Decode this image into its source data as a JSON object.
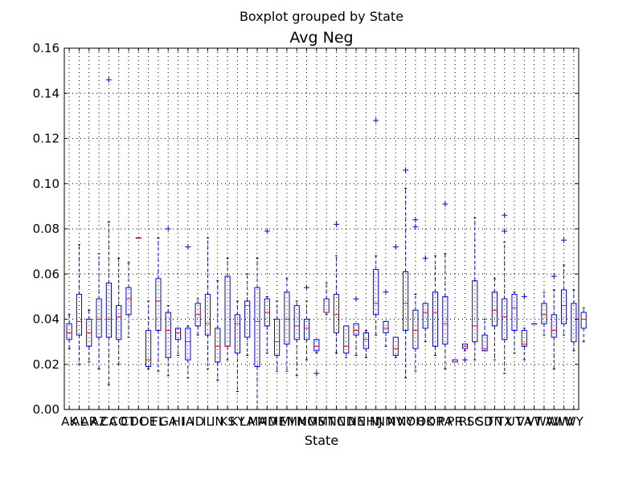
{
  "chart_data": {
    "type": "boxplot",
    "suptitle": "Boxplot grouped by State",
    "title": "Avg Neg",
    "xlabel": "State",
    "ylabel": "",
    "ylim": [
      0,
      0.16
    ],
    "yticks": [
      "0.00",
      "0.02",
      "0.04",
      "0.06",
      "0.08",
      "0.10",
      "0.12",
      "0.14",
      "0.16"
    ],
    "ytick_values": [
      0,
      0.02,
      0.04,
      0.06,
      0.08,
      0.1,
      0.12,
      0.14,
      0.16
    ],
    "grid": true,
    "colors": {
      "box": "#0000ff",
      "median": "#ff0000",
      "flier": "#0000ff",
      "grid": "#000000"
    },
    "categories": [
      "AK",
      "AL",
      "AR",
      "AZ",
      "CA",
      "CO",
      "CT",
      "DC",
      "DE",
      "FL",
      "GA",
      "HI",
      "IA",
      "ID",
      "IL",
      "IN",
      "KS",
      "KY",
      "LA",
      "MA",
      "MD",
      "ME",
      "MI",
      "MN",
      "MO",
      "MS",
      "MT",
      "NC",
      "ND",
      "NE",
      "NH",
      "NJ",
      "NM",
      "NV",
      "NY",
      "OH",
      "OK",
      "OR",
      "PA",
      "PR",
      "RI",
      "SC",
      "SD",
      "TN",
      "TX",
      "UT",
      "VA",
      "VT",
      "WA",
      "WI",
      "WV",
      "WY"
    ],
    "boxes": [
      {
        "min": 0.027,
        "q1": 0.031,
        "median": 0.034,
        "q3": 0.038,
        "max": 0.042,
        "fliers": []
      },
      {
        "min": 0.02,
        "q1": 0.033,
        "median": 0.039,
        "q3": 0.051,
        "max": 0.073,
        "fliers": []
      },
      {
        "min": 0.021,
        "q1": 0.028,
        "median": 0.034,
        "q3": 0.04,
        "max": 0.044,
        "fliers": []
      },
      {
        "min": 0.018,
        "q1": 0.032,
        "median": 0.04,
        "q3": 0.049,
        "max": 0.069,
        "fliers": []
      },
      {
        "min": 0.011,
        "q1": 0.032,
        "median": 0.04,
        "q3": 0.056,
        "max": 0.083,
        "fliers": [
          0.146
        ]
      },
      {
        "min": 0.02,
        "q1": 0.031,
        "median": 0.041,
        "q3": 0.046,
        "max": 0.067,
        "fliers": []
      },
      {
        "min": 0.032,
        "q1": 0.042,
        "median": 0.049,
        "q3": 0.054,
        "max": 0.065,
        "fliers": []
      },
      {
        "min": 0.076,
        "q1": 0.076,
        "median": 0.076,
        "q3": 0.076,
        "max": 0.076,
        "fliers": []
      },
      {
        "min": 0.018,
        "q1": 0.019,
        "median": 0.022,
        "q3": 0.035,
        "max": 0.048,
        "fliers": []
      },
      {
        "min": 0.017,
        "q1": 0.035,
        "median": 0.048,
        "q3": 0.058,
        "max": 0.076,
        "fliers": []
      },
      {
        "min": 0.015,
        "q1": 0.023,
        "median": 0.035,
        "q3": 0.043,
        "max": 0.046,
        "fliers": [
          0.08
        ]
      },
      {
        "min": 0.024,
        "q1": 0.031,
        "median": 0.034,
        "q3": 0.036,
        "max": 0.036,
        "fliers": []
      },
      {
        "min": 0.014,
        "q1": 0.022,
        "median": 0.03,
        "q3": 0.036,
        "max": 0.037,
        "fliers": [
          0.072
        ]
      },
      {
        "min": 0.033,
        "q1": 0.037,
        "median": 0.042,
        "q3": 0.047,
        "max": 0.049,
        "fliers": []
      },
      {
        "min": 0.018,
        "q1": 0.033,
        "median": 0.038,
        "q3": 0.051,
        "max": 0.076,
        "fliers": []
      },
      {
        "min": 0.013,
        "q1": 0.021,
        "median": 0.028,
        "q3": 0.036,
        "max": 0.057,
        "fliers": []
      },
      {
        "min": 0.022,
        "q1": 0.028,
        "median": 0.028,
        "q3": 0.059,
        "max": 0.067,
        "fliers": []
      },
      {
        "min": 0.008,
        "q1": 0.025,
        "median": 0.038,
        "q3": 0.042,
        "max": 0.048,
        "fliers": []
      },
      {
        "min": 0.024,
        "q1": 0.032,
        "median": 0.046,
        "q3": 0.048,
        "max": 0.06,
        "fliers": []
      },
      {
        "min": 0.0,
        "q1": 0.019,
        "median": 0.039,
        "q3": 0.054,
        "max": 0.067,
        "fliers": []
      },
      {
        "min": 0.025,
        "q1": 0.037,
        "median": 0.043,
        "q3": 0.049,
        "max": 0.05,
        "fliers": [
          0.079
        ]
      },
      {
        "min": 0.017,
        "q1": 0.024,
        "median": 0.03,
        "q3": 0.04,
        "max": 0.048,
        "fliers": []
      },
      {
        "min": 0.017,
        "q1": 0.029,
        "median": 0.04,
        "q3": 0.052,
        "max": 0.058,
        "fliers": []
      },
      {
        "min": 0.015,
        "q1": 0.031,
        "median": 0.037,
        "q3": 0.046,
        "max": 0.048,
        "fliers": []
      },
      {
        "min": 0.022,
        "q1": 0.031,
        "median": 0.036,
        "q3": 0.04,
        "max": 0.048,
        "fliers": [
          0.054
        ]
      },
      {
        "min": 0.025,
        "q1": 0.026,
        "median": 0.028,
        "q3": 0.031,
        "max": 0.031,
        "fliers": [
          0.016
        ]
      },
      {
        "min": 0.042,
        "q1": 0.043,
        "median": 0.043,
        "q3": 0.049,
        "max": 0.056,
        "fliers": []
      },
      {
        "min": 0.025,
        "q1": 0.034,
        "median": 0.042,
        "q3": 0.051,
        "max": 0.068,
        "fliers": [
          0.082
        ]
      },
      {
        "min": 0.023,
        "q1": 0.025,
        "median": 0.028,
        "q3": 0.037,
        "max": 0.037,
        "fliers": []
      },
      {
        "min": 0.024,
        "q1": 0.033,
        "median": 0.035,
        "q3": 0.038,
        "max": 0.038,
        "fliers": [
          0.049
        ]
      },
      {
        "min": 0.023,
        "q1": 0.027,
        "median": 0.031,
        "q3": 0.034,
        "max": 0.035,
        "fliers": []
      },
      {
        "min": 0.033,
        "q1": 0.042,
        "median": 0.047,
        "q3": 0.062,
        "max": 0.068,
        "fliers": [
          0.128
        ]
      },
      {
        "min": 0.028,
        "q1": 0.034,
        "median": 0.036,
        "q3": 0.039,
        "max": 0.039,
        "fliers": [
          0.052
        ]
      },
      {
        "min": 0.023,
        "q1": 0.024,
        "median": 0.027,
        "q3": 0.032,
        "max": 0.032,
        "fliers": [
          0.072
        ]
      },
      {
        "min": 0.014,
        "q1": 0.035,
        "median": 0.047,
        "q3": 0.061,
        "max": 0.098,
        "fliers": [
          0.106
        ]
      },
      {
        "min": 0.017,
        "q1": 0.027,
        "median": 0.035,
        "q3": 0.044,
        "max": 0.051,
        "fliers": [
          0.081,
          0.084
        ]
      },
      {
        "min": 0.03,
        "q1": 0.036,
        "median": 0.043,
        "q3": 0.047,
        "max": 0.047,
        "fliers": [
          0.067
        ]
      },
      {
        "min": 0.024,
        "q1": 0.028,
        "median": 0.043,
        "q3": 0.052,
        "max": 0.068,
        "fliers": []
      },
      {
        "min": 0.018,
        "q1": 0.029,
        "median": 0.038,
        "q3": 0.05,
        "max": 0.069,
        "fliers": [
          0.091
        ]
      },
      {
        "min": 0.021,
        "q1": 0.021,
        "median": 0.021,
        "q3": 0.022,
        "max": 0.022,
        "fliers": []
      },
      {
        "min": 0.026,
        "q1": 0.027,
        "median": 0.028,
        "q3": 0.029,
        "max": 0.029,
        "fliers": [
          0.022
        ]
      },
      {
        "min": 0.022,
        "q1": 0.03,
        "median": 0.037,
        "q3": 0.057,
        "max": 0.085,
        "fliers": []
      },
      {
        "min": 0.026,
        "q1": 0.026,
        "median": 0.027,
        "q3": 0.033,
        "max": 0.04,
        "fliers": []
      },
      {
        "min": 0.022,
        "q1": 0.037,
        "median": 0.044,
        "q3": 0.052,
        "max": 0.058,
        "fliers": []
      },
      {
        "min": 0.016,
        "q1": 0.031,
        "median": 0.041,
        "q3": 0.049,
        "max": 0.074,
        "fliers": [
          0.079,
          0.086
        ]
      },
      {
        "min": 0.025,
        "q1": 0.035,
        "median": 0.045,
        "q3": 0.051,
        "max": 0.052,
        "fliers": []
      },
      {
        "min": 0.022,
        "q1": 0.028,
        "median": 0.029,
        "q3": 0.035,
        "max": 0.036,
        "fliers": [
          0.05
        ]
      },
      {
        "min": 0.038,
        "q1": 0.038,
        "median": 0.038,
        "q3": 0.038,
        "max": 0.038,
        "fliers": []
      },
      {
        "min": 0.033,
        "q1": 0.038,
        "median": 0.042,
        "q3": 0.047,
        "max": 0.052,
        "fliers": []
      },
      {
        "min": 0.018,
        "q1": 0.032,
        "median": 0.035,
        "q3": 0.042,
        "max": 0.053,
        "fliers": [
          0.059
        ]
      },
      {
        "min": 0.033,
        "q1": 0.038,
        "median": 0.046,
        "q3": 0.053,
        "max": 0.064,
        "fliers": [
          0.075
        ]
      },
      {
        "min": 0.026,
        "q1": 0.03,
        "median": 0.03,
        "q3": 0.047,
        "max": 0.053,
        "fliers": []
      },
      {
        "min": 0.03,
        "q1": 0.036,
        "median": 0.04,
        "q3": 0.043,
        "max": 0.045,
        "fliers": []
      }
    ]
  }
}
